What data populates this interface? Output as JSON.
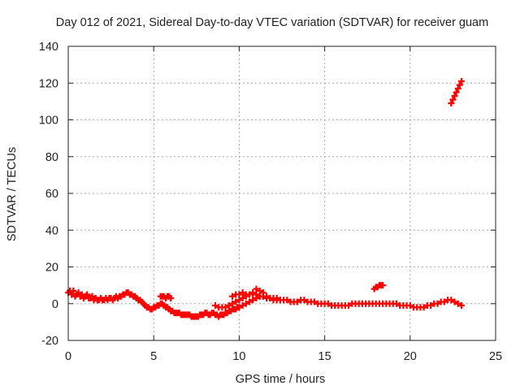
{
  "chart_data": {
    "type": "scatter",
    "title": "Day 012 of 2021, Sidereal Day-to-day VTEC variation (SDTVAR) for receiver guam",
    "xlabel": "GPS time / hours",
    "ylabel": "SDTVAR / TECUs",
    "xlim": [
      0,
      25
    ],
    "ylim": [
      -20,
      140
    ],
    "xticks": [
      0,
      5,
      10,
      15,
      20,
      25
    ],
    "yticks": [
      -20,
      0,
      20,
      40,
      60,
      80,
      100,
      120,
      140
    ],
    "grid": true,
    "marker": "plus",
    "color": "#ff0000",
    "series": [
      {
        "name": "main-track",
        "points": [
          [
            0.0,
            6
          ],
          [
            0.1,
            7
          ],
          [
            0.2,
            5
          ],
          [
            0.3,
            7
          ],
          [
            0.4,
            4
          ],
          [
            0.5,
            5
          ],
          [
            0.6,
            6
          ],
          [
            0.7,
            4
          ],
          [
            0.8,
            5
          ],
          [
            0.9,
            3
          ],
          [
            1.0,
            4
          ],
          [
            1.1,
            5
          ],
          [
            1.2,
            3
          ],
          [
            1.3,
            3
          ],
          [
            1.4,
            4
          ],
          [
            1.5,
            2
          ],
          [
            1.6,
            3
          ],
          [
            1.7,
            2
          ],
          [
            1.8,
            2
          ],
          [
            1.9,
            3
          ],
          [
            2.0,
            2
          ],
          [
            2.1,
            2
          ],
          [
            2.2,
            3
          ],
          [
            2.3,
            2
          ],
          [
            2.4,
            3
          ],
          [
            2.5,
            3
          ],
          [
            2.6,
            2
          ],
          [
            2.7,
            3
          ],
          [
            2.8,
            4
          ],
          [
            2.9,
            3
          ],
          [
            3.0,
            4
          ],
          [
            3.1,
            4
          ],
          [
            3.2,
            5
          ],
          [
            3.3,
            5
          ],
          [
            3.4,
            6
          ],
          [
            3.5,
            6
          ],
          [
            3.6,
            5
          ],
          [
            3.7,
            5
          ],
          [
            3.8,
            4
          ],
          [
            3.9,
            4
          ],
          [
            4.0,
            3
          ],
          [
            4.1,
            2
          ],
          [
            4.2,
            2
          ],
          [
            4.3,
            1
          ],
          [
            4.4,
            0
          ],
          [
            4.5,
            -1
          ],
          [
            4.6,
            -2
          ],
          [
            4.7,
            -2
          ],
          [
            4.8,
            -3
          ],
          [
            4.9,
            -3
          ],
          [
            5.0,
            -2
          ],
          [
            5.1,
            -2
          ],
          [
            5.2,
            -1
          ],
          [
            5.3,
            -1
          ],
          [
            5.4,
            0
          ],
          [
            5.5,
            0
          ],
          [
            5.6,
            -1
          ],
          [
            5.7,
            -2
          ],
          [
            5.8,
            -2
          ],
          [
            5.9,
            -3
          ],
          [
            6.0,
            -4
          ],
          [
            6.1,
            -4
          ],
          [
            6.2,
            -5
          ],
          [
            6.3,
            -5
          ],
          [
            6.4,
            -5
          ],
          [
            6.5,
            -5
          ],
          [
            6.6,
            -6
          ],
          [
            6.7,
            -6
          ],
          [
            6.8,
            -6
          ],
          [
            6.9,
            -6
          ],
          [
            7.0,
            -6
          ],
          [
            7.1,
            -6
          ],
          [
            7.2,
            -7
          ],
          [
            7.3,
            -7
          ],
          [
            7.4,
            -7
          ],
          [
            7.5,
            -7
          ],
          [
            7.6,
            -7
          ],
          [
            7.7,
            -6
          ],
          [
            7.8,
            -6
          ],
          [
            7.9,
            -6
          ],
          [
            8.0,
            -5
          ],
          [
            8.1,
            -5
          ],
          [
            8.2,
            -6
          ],
          [
            8.3,
            -6
          ],
          [
            8.4,
            -5
          ],
          [
            8.5,
            -5
          ],
          [
            8.6,
            -6
          ],
          [
            8.7,
            -6
          ],
          [
            8.8,
            -7
          ],
          [
            8.9,
            -6
          ],
          [
            9.0,
            -6
          ],
          [
            9.1,
            -6
          ],
          [
            9.2,
            -5
          ],
          [
            9.3,
            -5
          ],
          [
            9.4,
            -4
          ],
          [
            9.5,
            -4
          ],
          [
            9.6,
            -3
          ],
          [
            9.7,
            -3
          ],
          [
            9.8,
            -3
          ],
          [
            9.9,
            -2
          ],
          [
            10.0,
            -2
          ],
          [
            10.2,
            -1
          ],
          [
            10.4,
            0
          ],
          [
            10.6,
            1
          ],
          [
            10.8,
            2
          ],
          [
            11.0,
            3
          ],
          [
            11.2,
            4
          ],
          [
            11.4,
            4
          ],
          [
            11.6,
            4
          ],
          [
            11.8,
            3
          ],
          [
            12.0,
            3
          ],
          [
            12.2,
            3
          ],
          [
            12.4,
            2
          ],
          [
            12.6,
            2
          ],
          [
            12.8,
            2
          ],
          [
            13.0,
            1
          ],
          [
            13.2,
            1
          ],
          [
            13.4,
            1
          ],
          [
            13.6,
            2
          ],
          [
            13.8,
            2
          ],
          [
            14.0,
            1
          ],
          [
            14.2,
            1
          ],
          [
            14.4,
            1
          ],
          [
            14.6,
            0
          ],
          [
            14.8,
            0
          ],
          [
            15.0,
            0
          ],
          [
            15.2,
            0
          ],
          [
            15.4,
            -1
          ],
          [
            15.6,
            -1
          ],
          [
            15.8,
            -1
          ],
          [
            16.0,
            -1
          ],
          [
            16.2,
            -1
          ],
          [
            16.4,
            -1
          ],
          [
            16.6,
            0
          ],
          [
            16.8,
            0
          ],
          [
            17.0,
            0
          ],
          [
            17.2,
            0
          ],
          [
            17.4,
            0
          ],
          [
            17.6,
            0
          ],
          [
            17.8,
            0
          ],
          [
            18.0,
            0
          ],
          [
            18.2,
            0
          ],
          [
            18.4,
            0
          ],
          [
            18.6,
            0
          ],
          [
            18.8,
            0
          ],
          [
            19.0,
            0
          ],
          [
            19.2,
            0
          ],
          [
            19.4,
            -1
          ],
          [
            19.6,
            -1
          ],
          [
            19.8,
            -1
          ],
          [
            20.0,
            -1
          ],
          [
            20.2,
            -2
          ],
          [
            20.4,
            -2
          ],
          [
            20.6,
            -2
          ],
          [
            20.8,
            -2
          ],
          [
            21.0,
            -1
          ],
          [
            21.2,
            -1
          ],
          [
            21.4,
            0
          ],
          [
            21.6,
            0
          ],
          [
            21.8,
            1
          ],
          [
            22.0,
            1
          ],
          [
            22.2,
            2
          ],
          [
            22.4,
            2
          ],
          [
            22.6,
            1
          ],
          [
            22.8,
            0
          ],
          [
            23.0,
            -1
          ]
        ]
      },
      {
        "name": "upper-branch-start",
        "points": [
          [
            5.4,
            4
          ],
          [
            5.5,
            4
          ],
          [
            5.6,
            4
          ],
          [
            5.7,
            3
          ],
          [
            5.8,
            4
          ],
          [
            5.9,
            4
          ],
          [
            6.0,
            3
          ]
        ]
      },
      {
        "name": "loop-branch",
        "points": [
          [
            8.6,
            -1
          ],
          [
            8.8,
            -2
          ],
          [
            9.0,
            -2
          ],
          [
            9.2,
            -2
          ],
          [
            9.4,
            -1
          ],
          [
            9.6,
            0
          ],
          [
            9.8,
            1
          ],
          [
            10.0,
            2
          ],
          [
            10.2,
            3
          ],
          [
            10.4,
            4
          ],
          [
            10.6,
            5
          ],
          [
            10.8,
            5
          ],
          [
            11.0,
            5
          ],
          [
            11.2,
            4
          ],
          [
            11.4,
            4
          ],
          [
            11.6,
            3
          ],
          [
            11.8,
            3
          ],
          [
            12.0,
            2
          ],
          [
            12.2,
            2
          ],
          [
            12.4,
            2
          ],
          [
            9.6,
            4
          ],
          [
            9.8,
            5
          ],
          [
            10.0,
            5
          ],
          [
            10.2,
            6
          ],
          [
            10.4,
            5
          ],
          [
            10.6,
            5
          ],
          [
            10.8,
            6
          ],
          [
            11.0,
            8
          ],
          [
            11.2,
            7
          ],
          [
            11.4,
            6
          ]
        ]
      },
      {
        "name": "isolated-segment",
        "points": [
          [
            17.9,
            8
          ],
          [
            18.0,
            9
          ],
          [
            18.1,
            9
          ],
          [
            18.2,
            10
          ],
          [
            18.3,
            10
          ],
          [
            18.4,
            10
          ]
        ]
      },
      {
        "name": "high-outlier-segment",
        "points": [
          [
            22.4,
            109
          ],
          [
            22.5,
            111
          ],
          [
            22.6,
            113
          ],
          [
            22.7,
            115
          ],
          [
            22.8,
            117
          ],
          [
            22.9,
            119
          ],
          [
            23.0,
            121
          ]
        ]
      }
    ]
  }
}
